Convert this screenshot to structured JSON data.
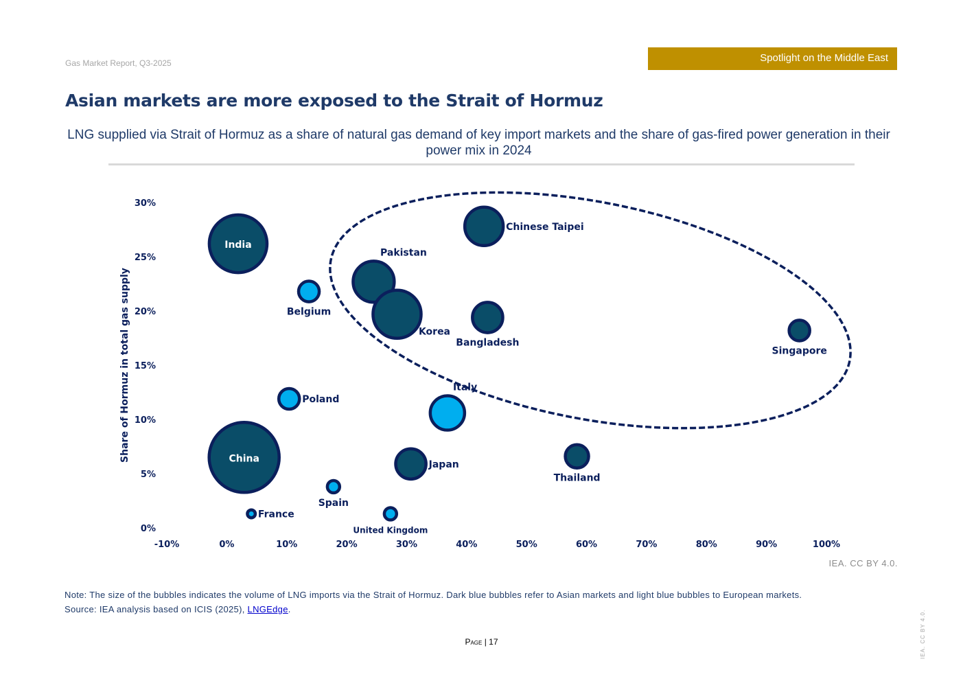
{
  "header": {
    "report": "Gas Market Report, Q3-2025",
    "section": "Spotlight on the Middle East"
  },
  "title": "Asian markets are more exposed to the Strait of Hormuz",
  "subtitle": "LNG supplied via Strait of Hormuz as a share of natural gas demand of key import markets and the share of gas-fired power generation in their power mix in 2024",
  "credit": "IEA. CC BY 4.0.",
  "note": "Note: The size of the bubbles indicates the volume of LNG imports via the Strait of Hormuz. Dark blue bubbles refer to Asian markets and light blue bubbles to European markets.",
  "source_prefix": "Source: IEA analysis based on ICIS (2025), ",
  "source_link": "LNGEdge",
  "source_suffix": ".",
  "page": {
    "label": "Page",
    "number": "| 17"
  },
  "side_credit": "IEA. CC BY 4.0.",
  "colors": {
    "asia": "#0a4d68",
    "europe": "#00aeef",
    "outline": "#0b1f5c",
    "text": "#0b1f5c"
  },
  "chart_data": {
    "type": "scatter",
    "bubble": true,
    "title": "",
    "xlabel": "",
    "ylabel": "Share of Hormuz in total gas supply",
    "xlim": [
      -10,
      100
    ],
    "ylim": [
      0,
      30
    ],
    "x_ticks": [
      "-10%",
      "0%",
      "10%",
      "20%",
      "30%",
      "40%",
      "50%",
      "60%",
      "70%",
      "80%",
      "90%",
      "100%"
    ],
    "y_ticks": [
      "0%",
      "5%",
      "10%",
      "15%",
      "20%",
      "25%",
      "30%"
    ],
    "grid": false,
    "annotation": "dashed ellipse around Pakistan, Korea, Chinese Taipei, Bangladesh and Singapore",
    "points": [
      {
        "name": "India",
        "x": 1.9,
        "y": 26.2,
        "size": 19.4,
        "region": "asia",
        "label": "center"
      },
      {
        "name": "Belgium",
        "x": 13.7,
        "y": 21.8,
        "size": 2.9,
        "region": "europe",
        "label": "below"
      },
      {
        "name": "Pakistan",
        "x": 24.5,
        "y": 22.7,
        "size": 10.2,
        "region": "asia",
        "label": "above-right"
      },
      {
        "name": "Korea",
        "x": 28.4,
        "y": 19.7,
        "size": 13.7,
        "region": "asia",
        "label": "below-right"
      },
      {
        "name": "Chinese Taipei",
        "x": 42.9,
        "y": 27.8,
        "size": 9.0,
        "region": "asia",
        "label": "right"
      },
      {
        "name": "Bangladesh",
        "x": 43.5,
        "y": 19.4,
        "size": 5.8,
        "region": "asia",
        "label": "below"
      },
      {
        "name": "Singapore",
        "x": 95.5,
        "y": 18.2,
        "size": 2.9,
        "region": "asia",
        "label": "below"
      },
      {
        "name": "Poland",
        "x": 10.4,
        "y": 11.9,
        "size": 2.9,
        "region": "europe",
        "label": "right"
      },
      {
        "name": "Italy",
        "x": 36.8,
        "y": 10.6,
        "size": 7.3,
        "region": "europe",
        "label": "above-right"
      },
      {
        "name": "China",
        "x": 2.9,
        "y": 6.5,
        "size": 28.1,
        "region": "asia",
        "label": "center"
      },
      {
        "name": "Japan",
        "x": 30.7,
        "y": 5.9,
        "size": 5.8,
        "region": "asia",
        "label": "right"
      },
      {
        "name": "Thailand",
        "x": 58.4,
        "y": 6.6,
        "size": 3.6,
        "region": "asia",
        "label": "below"
      },
      {
        "name": "Spain",
        "x": 17.8,
        "y": 3.8,
        "size": 1.2,
        "region": "europe",
        "label": "below"
      },
      {
        "name": "France",
        "x": 4.1,
        "y": 1.3,
        "size": 0.6,
        "region": "europe",
        "label": "right"
      },
      {
        "name": "United Kingdom",
        "x": 27.3,
        "y": 1.3,
        "size": 1.2,
        "region": "europe",
        "label": "below"
      }
    ]
  }
}
